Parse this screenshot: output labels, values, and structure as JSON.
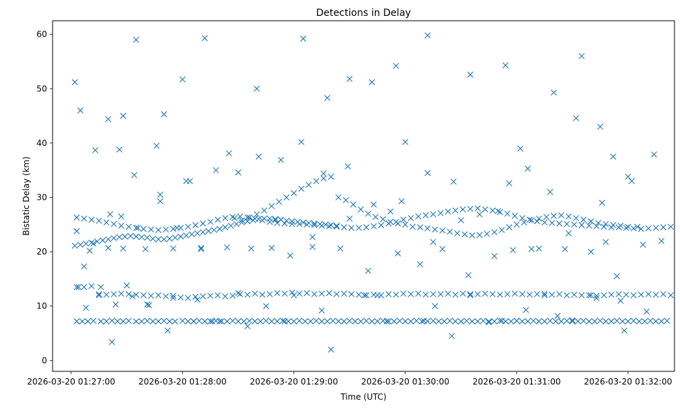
{
  "chart_data": {
    "type": "scatter",
    "title": "Detections in Delay",
    "xlabel": "Time (UTC)",
    "ylabel": "Bistatic Delay (km)",
    "marker": "x",
    "color": "#1f77b4",
    "grid": false,
    "xlim_seconds_after_0127": [
      -10,
      325
    ],
    "ylim": [
      -2,
      62.5
    ],
    "x_tick_labels": [
      "2026-03-20 01:27:00",
      "2026-03-20 01:28:00",
      "2026-03-20 01:29:00",
      "2026-03-20 01:30:00",
      "2026-03-20 01:31:00",
      "2026-03-20 01:32:00"
    ],
    "x_tick_seconds": [
      0,
      60,
      120,
      180,
      240,
      300
    ],
    "y_ticks": [
      0,
      10,
      20,
      30,
      40,
      50,
      60
    ],
    "series": [
      {
        "x_seconds_after_0127": [
          2,
          5,
          13,
          20,
          35,
          28,
          46,
          50,
          60,
          64,
          72,
          85,
          100,
          125,
          138,
          150,
          162,
          175,
          180,
          192,
          215,
          234,
          242,
          260,
          275,
          285,
          292,
          302,
          3,
          7,
          15,
          24,
          33,
          42,
          55,
          68,
          80,
          95,
          115,
          135,
          158,
          170,
          196,
          205,
          225,
          240,
          255,
          270,
          283,
          296,
          310,
          4,
          8,
          16,
          22,
          30,
          41,
          52,
          66,
          76,
          90,
          105,
          120,
          140,
          165,
          190,
          215,
          232,
          245,
          262,
          280,
          298,
          3,
          10,
          21,
          27,
          36,
          48,
          57,
          70,
          88,
          110,
          130,
          150,
          172,
          195,
          210,
          230,
          248,
          268,
          288,
          305
        ],
        "y": [
          51.2,
          46,
          38.7,
          44.4,
          59,
          45,
          39.5,
          45.3,
          51.7,
          33,
          59.3,
          38.1,
          50,
          59.2,
          48.3,
          51.8,
          51.2,
          54.2,
          40.2,
          59.8,
          52.6,
          54.3,
          39,
          49.3,
          56,
          43,
          37.5,
          33,
          23.8,
          17.3,
          12,
          10.3,
          11.8,
          10.2,
          11.5,
          11.2,
          7.2,
          6.3,
          7.2,
          9.2,
          12,
          7.2,
          10,
          4.5,
          7,
          7.3,
          12,
          7.4,
          11.5,
          11,
          9,
          13.5,
          9.7,
          13.5,
          3.4,
          13.8,
          10.3,
          5.5,
          7.2,
          7.2,
          12.4,
          10,
          12,
          2,
          12,
          7.3,
          12,
          7.3,
          9.3,
          8.2,
          12,
          5.5,
          7.2,
          20.2,
          26.9,
          26.5,
          24.4,
          30.5,
          24.4,
          20.5,
          26.2,
          25.8,
          22.7,
          26.1,
          27.4,
          21.8,
          25.8,
          27.5,
          20.5,
          23.4,
          21.8,
          24.6,
          27.3,
          21.3
        ]
      },
      {
        "x_seconds_after_0127": [
          3,
          7,
          11,
          15,
          19,
          23,
          27,
          31,
          35,
          39,
          43,
          47,
          51,
          55,
          59,
          63,
          67,
          71,
          75,
          79,
          83,
          87,
          91,
          95,
          99,
          103,
          107,
          111,
          115,
          119,
          123,
          127,
          131,
          135,
          139,
          143,
          147,
          151,
          155,
          159,
          163,
          167,
          171,
          175,
          179,
          183,
          187,
          191,
          195,
          199,
          203,
          207,
          211,
          215,
          219,
          223,
          227,
          231,
          235,
          239,
          243,
          247,
          251,
          255,
          259,
          263,
          267,
          271,
          275,
          279,
          283,
          287,
          291,
          295,
          299,
          303,
          307,
          311,
          315,
          319,
          323
        ],
        "y": [
          13.5,
          13.5,
          13.7,
          12.2,
          12.1,
          12.2,
          12.3,
          12.2,
          12.1,
          12,
          11.9,
          12,
          11.8,
          11.9,
          11.6,
          11.5,
          11.7,
          11.8,
          11.9,
          12,
          11.8,
          11.9,
          12.2,
          12.1,
          12.3,
          12.1,
          12.2,
          12.4,
          12.3,
          12.5,
          12.3,
          12.4,
          12.2,
          12.3,
          12.4,
          12.2,
          12.3,
          12.2,
          12.1,
          12,
          12.1,
          12,
          12.2,
          12.1,
          12.3,
          12.2,
          12.3,
          12.1,
          12.2,
          12.2,
          12.3,
          12.1,
          12.3,
          12.2,
          12.2,
          12.3,
          12.2,
          12.1,
          12.2,
          12.3,
          12.2,
          12.1,
          12.2,
          12.3,
          12.1,
          12.2,
          12,
          12.1,
          12,
          12,
          11.9,
          12,
          12.1,
          12.2,
          12.1,
          12,
          12.1,
          12.2,
          12.1,
          12.2,
          12
        ]
      },
      {
        "x_seconds_after_0127": [
          6,
          9,
          12,
          16,
          19,
          22,
          25,
          28,
          31,
          35,
          38,
          41,
          44,
          47,
          50,
          53,
          56,
          60,
          63,
          66,
          69,
          72,
          75,
          78,
          81,
          84,
          87,
          90,
          93,
          96,
          99,
          102,
          105,
          108,
          111,
          114,
          117,
          120,
          123,
          126,
          129,
          132,
          135,
          138,
          141,
          144,
          147,
          150,
          153,
          156,
          159,
          162,
          165,
          168,
          171,
          174,
          177,
          180,
          183,
          186,
          189,
          192,
          195,
          198,
          201,
          204,
          207,
          210,
          213,
          216,
          219,
          222,
          225,
          228,
          231,
          234,
          237,
          240,
          243,
          246,
          249,
          252,
          255,
          258,
          261,
          264,
          267,
          270,
          273,
          276,
          279,
          282,
          285,
          288,
          291,
          294,
          297,
          300,
          303,
          306,
          309,
          312,
          315,
          318,
          321
        ],
        "y": [
          7.2,
          7.2,
          7.3,
          7.2,
          7.2,
          7.3,
          7.2,
          7.2,
          7.3,
          7.2,
          7.2,
          7.3,
          7.2,
          7.2,
          7.3,
          7.2,
          7.2,
          7.3,
          7.2,
          7.2,
          7.3,
          7.2,
          7.2,
          7.3,
          7.2,
          7.2,
          7.3,
          7.2,
          7.2,
          7.3,
          7.2,
          7.2,
          7.3,
          7.2,
          7.2,
          7.3,
          7.2,
          7.2,
          7.3,
          7.2,
          7.2,
          7.3,
          7.2,
          7.2,
          7.3,
          7.2,
          7.2,
          7.3,
          7.2,
          7.2,
          7.3,
          7.2,
          7.2,
          7.3,
          7.2,
          7.2,
          7.3,
          7.2,
          7.2,
          7.3,
          7.2,
          7.2,
          7.3,
          7.2,
          7.2,
          7.3,
          7.2,
          7.2,
          7.3,
          7.2,
          7.2,
          7.3,
          7.2,
          7.2,
          7.3,
          7.2,
          7.2,
          7.3,
          7.2,
          7.2,
          7.3,
          7.2,
          7.2,
          7.3,
          7.2,
          7.2,
          7.3,
          7.2,
          7.2,
          7.3,
          7.2,
          7.2,
          7.3,
          7.2,
          7.2,
          7.3,
          7.2,
          7.2,
          7.3,
          7.2,
          7.2,
          7.3,
          7.2,
          7.2,
          7.3
        ]
      },
      {
        "x_seconds_after_0127": [
          3,
          7,
          11,
          15,
          19,
          23,
          27,
          31,
          35,
          39,
          43,
          47,
          51,
          55,
          59,
          63,
          67,
          71,
          75,
          79,
          83,
          87,
          91,
          95,
          99,
          103,
          107,
          111,
          115,
          119,
          123,
          127,
          131,
          135,
          139,
          143,
          147,
          151,
          155,
          159,
          163,
          167,
          171,
          175,
          179,
          183,
          187,
          191,
          195,
          199,
          203,
          207,
          211,
          215,
          219,
          223,
          227,
          231,
          235,
          239,
          243,
          247,
          251,
          255,
          259,
          263,
          267,
          271,
          275,
          279,
          283,
          287,
          291,
          295,
          299,
          303,
          307,
          311,
          315,
          319,
          323
        ],
        "y": [
          26.3,
          26.1,
          25.9,
          25.7,
          25.4,
          25.1,
          24.8,
          24.6,
          24.4,
          24.2,
          24.1,
          24,
          24.1,
          24.2,
          24.4,
          24.6,
          24.9,
          25.2,
          25.5,
          25.9,
          26.2,
          26.4,
          26.5,
          26.3,
          26.1,
          25.8,
          25.5,
          25.3,
          25.2,
          25.1,
          25.1,
          25.0,
          24.9,
          24.8,
          24.7,
          24.6,
          24.5,
          24.4,
          24.4,
          24.5,
          24.7,
          24.9,
          25.2,
          25.5,
          25.9,
          26.2,
          26.5,
          26.7,
          26.9,
          27.1,
          27.4,
          27.6,
          27.8,
          27.9,
          28,
          27.8,
          27.6,
          27.3,
          27,
          26.6,
          26.2,
          25.9,
          25.6,
          25.4,
          25.3,
          25.2,
          25.1,
          25,
          24.9,
          24.8,
          24.7,
          24.6,
          24.5,
          24.5,
          24.4,
          24.3,
          24.2,
          24.3,
          24.4,
          24.5,
          24.6
        ]
      },
      {
        "x_seconds_after_0127": [
          2,
          5,
          8,
          11,
          14,
          17,
          20,
          23,
          26,
          29,
          32,
          35,
          38,
          41,
          44,
          47,
          50,
          53,
          56,
          59,
          62,
          65,
          68,
          71,
          74,
          77,
          80,
          83,
          86,
          89,
          92,
          95,
          98,
          101,
          104,
          107,
          110,
          113,
          116,
          119,
          122,
          125,
          128,
          131,
          134,
          137,
          140,
          143
        ],
        "y": [
          21.1,
          21.3,
          21.5,
          21.7,
          21.9,
          22.1,
          22.3,
          22.5,
          22.7,
          22.8,
          22.9,
          22.8,
          22.7,
          22.6,
          22.4,
          22.3,
          22.3,
          22.4,
          22.6,
          22.8,
          23,
          23.2,
          23.4,
          23.6,
          23.8,
          24,
          24.2,
          24.5,
          24.8,
          25.1,
          25.4,
          25.6,
          25.8,
          26,
          26.1,
          26.1,
          26.0,
          25.9,
          25.7,
          25.6,
          25.5,
          25.4,
          25.3,
          25.2,
          25.1,
          25,
          24.9,
          24.8
        ]
      },
      {
        "x_seconds_after_0127": [
          92,
          96,
          100,
          104,
          108,
          112,
          116,
          120,
          124,
          128,
          132,
          136,
          140,
          144,
          148,
          152,
          156,
          160,
          164,
          168,
          172,
          176,
          180,
          184,
          188,
          192,
          196,
          200,
          204,
          208,
          212,
          216,
          220,
          224,
          228,
          232,
          236,
          240,
          244,
          248,
          252,
          256,
          260,
          264,
          268,
          272,
          276,
          280,
          284,
          288,
          292,
          296,
          300
        ],
        "y": [
          25.8,
          26.3,
          26.9,
          27.6,
          28.4,
          29.2,
          30,
          30.8,
          31.6,
          32.3,
          33,
          33.5,
          33.8,
          30,
          29.5,
          28.7,
          27.8,
          27,
          26.4,
          26,
          25.5,
          25.2,
          25,
          24.6,
          24.5,
          24.3,
          24.1,
          23.9,
          23.7,
          23.4,
          23.2,
          23,
          23.1,
          23.3,
          23.6,
          24,
          24.5,
          25,
          25.4,
          25.8,
          26.1,
          26.4,
          26.6,
          26.7,
          26.5,
          26.2,
          25.9,
          25.6,
          25.3,
          25.1,
          24.9,
          24.8,
          24.6
        ]
      },
      {
        "x_seconds_after_0127": [
          20,
          28,
          40,
          55,
          70,
          84,
          97,
          108,
          118,
          130,
          145,
          160,
          176,
          188,
          200,
          214,
          228,
          238,
          252,
          266,
          280,
          294,
          308,
          318,
          12,
          26,
          34,
          48,
          62,
          78,
          90,
          101,
          113,
          124,
          136,
          149,
          163,
          178,
          192,
          206,
          220,
          236,
          246,
          258,
          272,
          286,
          300,
          314
        ],
        "y": [
          20.7,
          20.6,
          20.5,
          20.6,
          20.7,
          20.8,
          20.6,
          20.7,
          19.3,
          20.9,
          20.6,
          16.5,
          19.7,
          17.7,
          20.5,
          15.7,
          19.2,
          20.3,
          20.6,
          20.5,
          20,
          15.5,
          21.3,
          22,
          21.5,
          38.8,
          34.1,
          29.3,
          33,
          35,
          34.6,
          37.5,
          36.9,
          40.2,
          34.4,
          35.7,
          28.7,
          29.3,
          34.5,
          32.9,
          26.9,
          32.6,
          35.3,
          31,
          44.6,
          29,
          33.8,
          37.9
        ]
      }
    ]
  }
}
